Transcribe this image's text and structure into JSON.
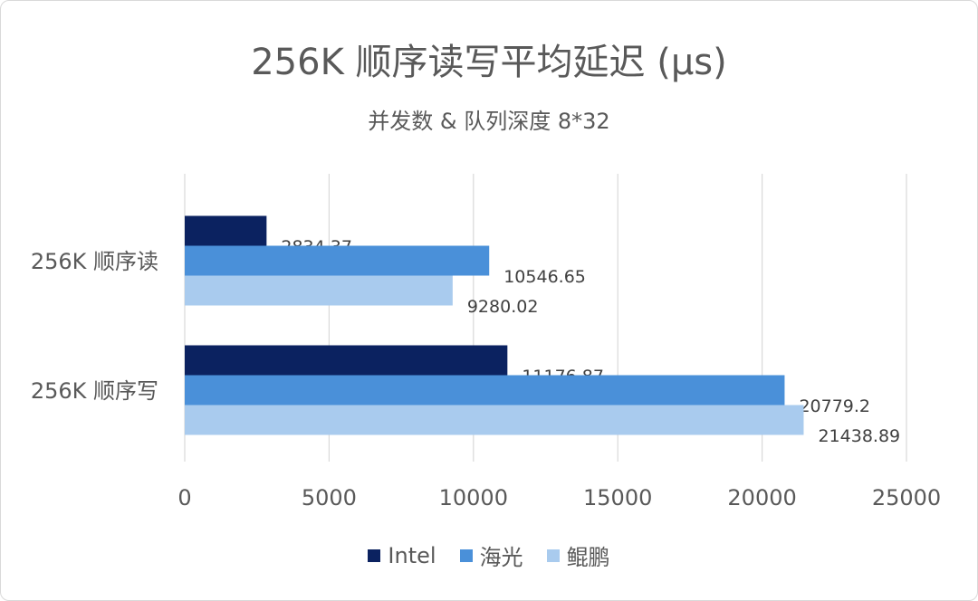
{
  "chart_data": {
    "type": "bar",
    "orientation": "horizontal",
    "title": "256K 顺序读写平均延迟 (μs)",
    "subtitle": "并发数 & 队列深度 8*32",
    "categories": [
      "256K 顺序读",
      "256K 顺序写"
    ],
    "series": [
      {
        "name": "Intel",
        "color": "#0b2260",
        "values": [
          2834.37,
          11176.87
        ],
        "labels": [
          "2834.37",
          "11176.87"
        ]
      },
      {
        "name": "海光",
        "color": "#4a90d9",
        "values": [
          10546.65,
          20779.2
        ],
        "labels": [
          "10546.65",
          "20779.2"
        ]
      },
      {
        "name": "鲲鹏",
        "color": "#a9cbee",
        "values": [
          9280.02,
          21438.89
        ],
        "labels": [
          "9280.02",
          "21438.89"
        ]
      }
    ],
    "xlim": [
      0,
      25000
    ],
    "xticks": [
      "0",
      "5000",
      "10000",
      "15000",
      "20000",
      "25000"
    ],
    "grid": true,
    "legend_position": "bottom"
  }
}
